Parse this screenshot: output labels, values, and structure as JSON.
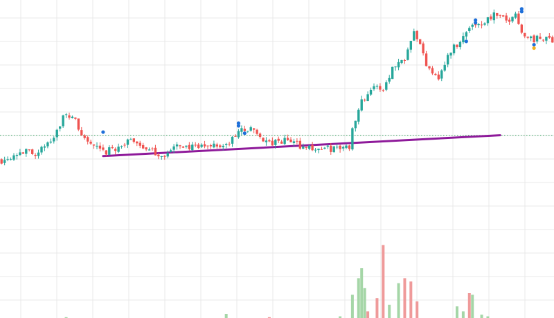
{
  "chart_data": {
    "type": "candlestick",
    "title": "",
    "xlabel": "",
    "ylabel": "",
    "grid": true,
    "legend": "none",
    "x_count": 180,
    "ylim": [
      0,
      100
    ],
    "volume_ylim": [
      0,
      100
    ],
    "colors": {
      "up": "#26a69a",
      "down": "#ef5350",
      "volume_up": "#a5d6a7",
      "volume_down": "#ef9a9a",
      "trendline": "#8e1a9a",
      "reference_line": "#2e9d57",
      "grid": "#e8e8e8",
      "marker_blue": "#1e6fd9",
      "marker_yellow": "#f2b01e"
    },
    "reference_level": 42.0,
    "trendline": {
      "x1": 33,
      "y1": 32.8,
      "x2": 162,
      "y2": 42.1
    },
    "candle_path": [
      [
        0,
        31
      ],
      [
        6,
        35
      ],
      [
        12,
        34
      ],
      [
        17,
        42
      ],
      [
        20,
        50
      ],
      [
        23,
        51
      ],
      [
        26,
        42
      ],
      [
        29,
        38
      ],
      [
        33,
        34
      ],
      [
        38,
        37
      ],
      [
        43,
        40
      ],
      [
        48,
        35
      ],
      [
        53,
        33
      ],
      [
        58,
        38
      ],
      [
        63,
        36
      ],
      [
        68,
        38
      ],
      [
        73,
        37
      ],
      [
        78,
        45
      ],
      [
        82,
        44
      ],
      [
        87,
        38
      ],
      [
        93,
        40
      ],
      [
        98,
        37
      ],
      [
        103,
        36
      ],
      [
        108,
        36
      ],
      [
        113,
        37
      ],
      [
        114,
        45
      ],
      [
        116,
        55
      ],
      [
        120,
        63
      ],
      [
        124,
        63
      ],
      [
        127,
        72
      ],
      [
        131,
        77
      ],
      [
        134,
        90
      ],
      [
        138,
        74
      ],
      [
        142,
        68
      ],
      [
        146,
        80
      ],
      [
        150,
        86
      ],
      [
        153,
        92
      ],
      [
        156,
        92
      ],
      [
        160,
        96
      ],
      [
        164,
        93
      ],
      [
        167,
        96
      ],
      [
        170,
        86
      ],
      [
        173,
        85
      ],
      [
        179,
        85
      ]
    ],
    "volume_bars": [
      {
        "x": 21,
        "v": 1,
        "dir": "up"
      },
      {
        "x": 73,
        "v": 5,
        "dir": "up"
      },
      {
        "x": 87,
        "v": 1,
        "dir": "down"
      },
      {
        "x": 110,
        "v": 2,
        "dir": "up"
      },
      {
        "x": 114,
        "v": 28,
        "dir": "up"
      },
      {
        "x": 116,
        "v": 48,
        "dir": "up"
      },
      {
        "x": 117,
        "v": 60,
        "dir": "up"
      },
      {
        "x": 118,
        "v": 36,
        "dir": "up"
      },
      {
        "x": 119,
        "v": 8,
        "dir": "down"
      },
      {
        "x": 122,
        "v": 24,
        "dir": "down"
      },
      {
        "x": 124,
        "v": 88,
        "dir": "down"
      },
      {
        "x": 126,
        "v": 16,
        "dir": "up"
      },
      {
        "x": 129,
        "v": 42,
        "dir": "up"
      },
      {
        "x": 131,
        "v": 48,
        "dir": "down"
      },
      {
        "x": 133,
        "v": 44,
        "dir": "down"
      },
      {
        "x": 135,
        "v": 20,
        "dir": "down"
      },
      {
        "x": 148,
        "v": 14,
        "dir": "up"
      },
      {
        "x": 150,
        "v": 8,
        "dir": "up"
      },
      {
        "x": 152,
        "v": 30,
        "dir": "down"
      },
      {
        "x": 153,
        "v": 28,
        "dir": "up"
      },
      {
        "x": 156,
        "v": 4,
        "dir": "up"
      },
      {
        "x": 158,
        "v": 2,
        "dir": "up"
      }
    ],
    "markers": [
      {
        "x": 33,
        "y": 43.5,
        "color": "blue"
      },
      {
        "x": 77,
        "y": 47.5,
        "color": "blue"
      },
      {
        "x": 77,
        "y": 46.3,
        "color": "blue"
      },
      {
        "x": 79,
        "y": 43.0,
        "color": "blue"
      },
      {
        "x": 151,
        "y": 84.0,
        "color": "blue"
      },
      {
        "x": 154,
        "y": 93.5,
        "color": "blue"
      },
      {
        "x": 154,
        "y": 92.3,
        "color": "blue"
      },
      {
        "x": 169,
        "y": 98.5,
        "color": "blue"
      },
      {
        "x": 169,
        "y": 97.3,
        "color": "blue"
      },
      {
        "x": 173,
        "y": 82.5,
        "color": "blue"
      },
      {
        "x": 173,
        "y": 81.0,
        "color": "yellow"
      }
    ]
  }
}
